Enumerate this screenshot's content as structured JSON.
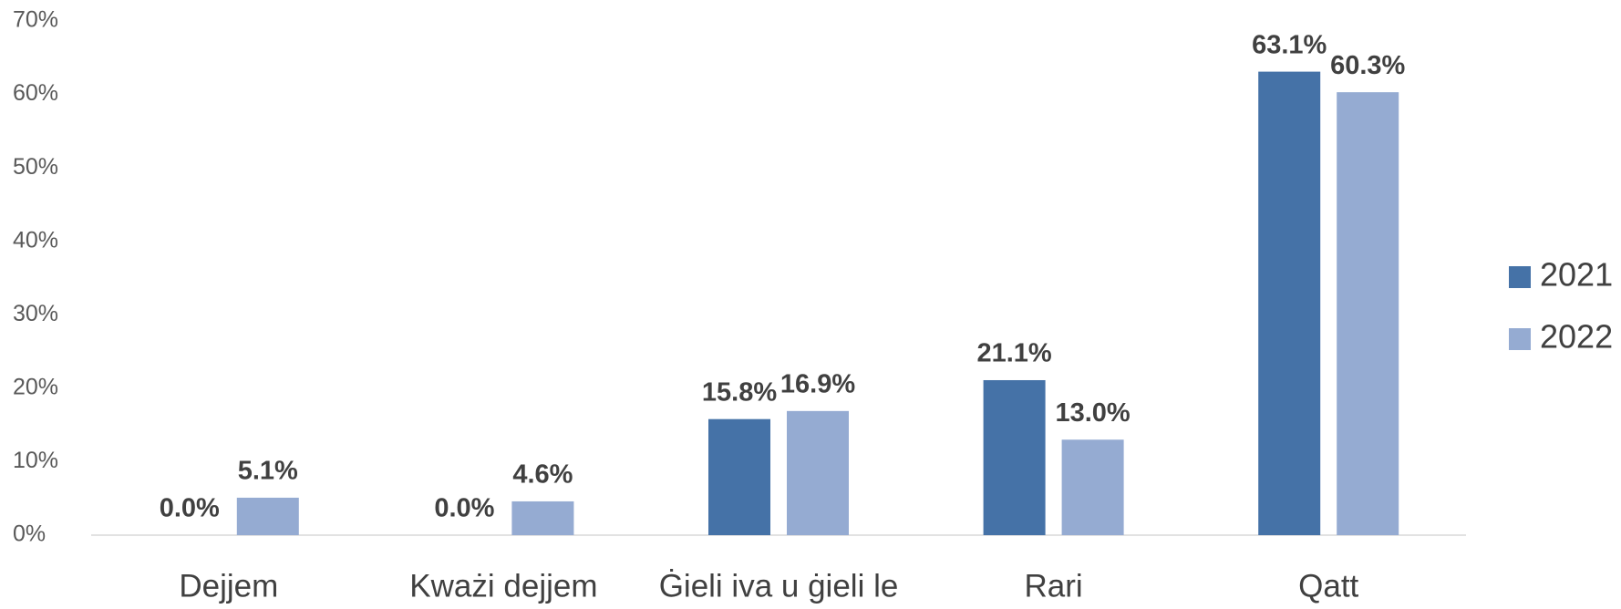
{
  "chart_data": {
    "type": "bar",
    "categories": [
      "Dejjem",
      "Kważi dejjem",
      "Ġieli iva u ġieli le",
      "Rari",
      "Qatt"
    ],
    "series": [
      {
        "name": "2021",
        "color": "#4572a7",
        "values": [
          0,
          0,
          15.8,
          21.1,
          63.1
        ],
        "value_labels": [
          "0.0%",
          "0.0%",
          "15.8%",
          "21.1%",
          "63.1%"
        ]
      },
      {
        "name": "2022",
        "color": "#95abd2",
        "values": [
          5.1,
          4.6,
          16.9,
          13.0,
          60.3
        ],
        "value_labels": [
          "5.1%",
          "4.6%",
          "16.9%",
          "13.0%",
          "60.3%"
        ]
      }
    ],
    "ylim": [
      0,
      70
    ],
    "yticks": [
      {
        "value": 0,
        "label": "0%"
      },
      {
        "value": 10,
        "label": "10%"
      },
      {
        "value": 20,
        "label": "20%"
      },
      {
        "value": 30,
        "label": "30%"
      },
      {
        "value": 40,
        "label": "40%"
      },
      {
        "value": 50,
        "label": "50%"
      },
      {
        "value": 60,
        "label": "60%"
      },
      {
        "value": 70,
        "label": "70%"
      }
    ],
    "grid": false,
    "legend": "right"
  }
}
